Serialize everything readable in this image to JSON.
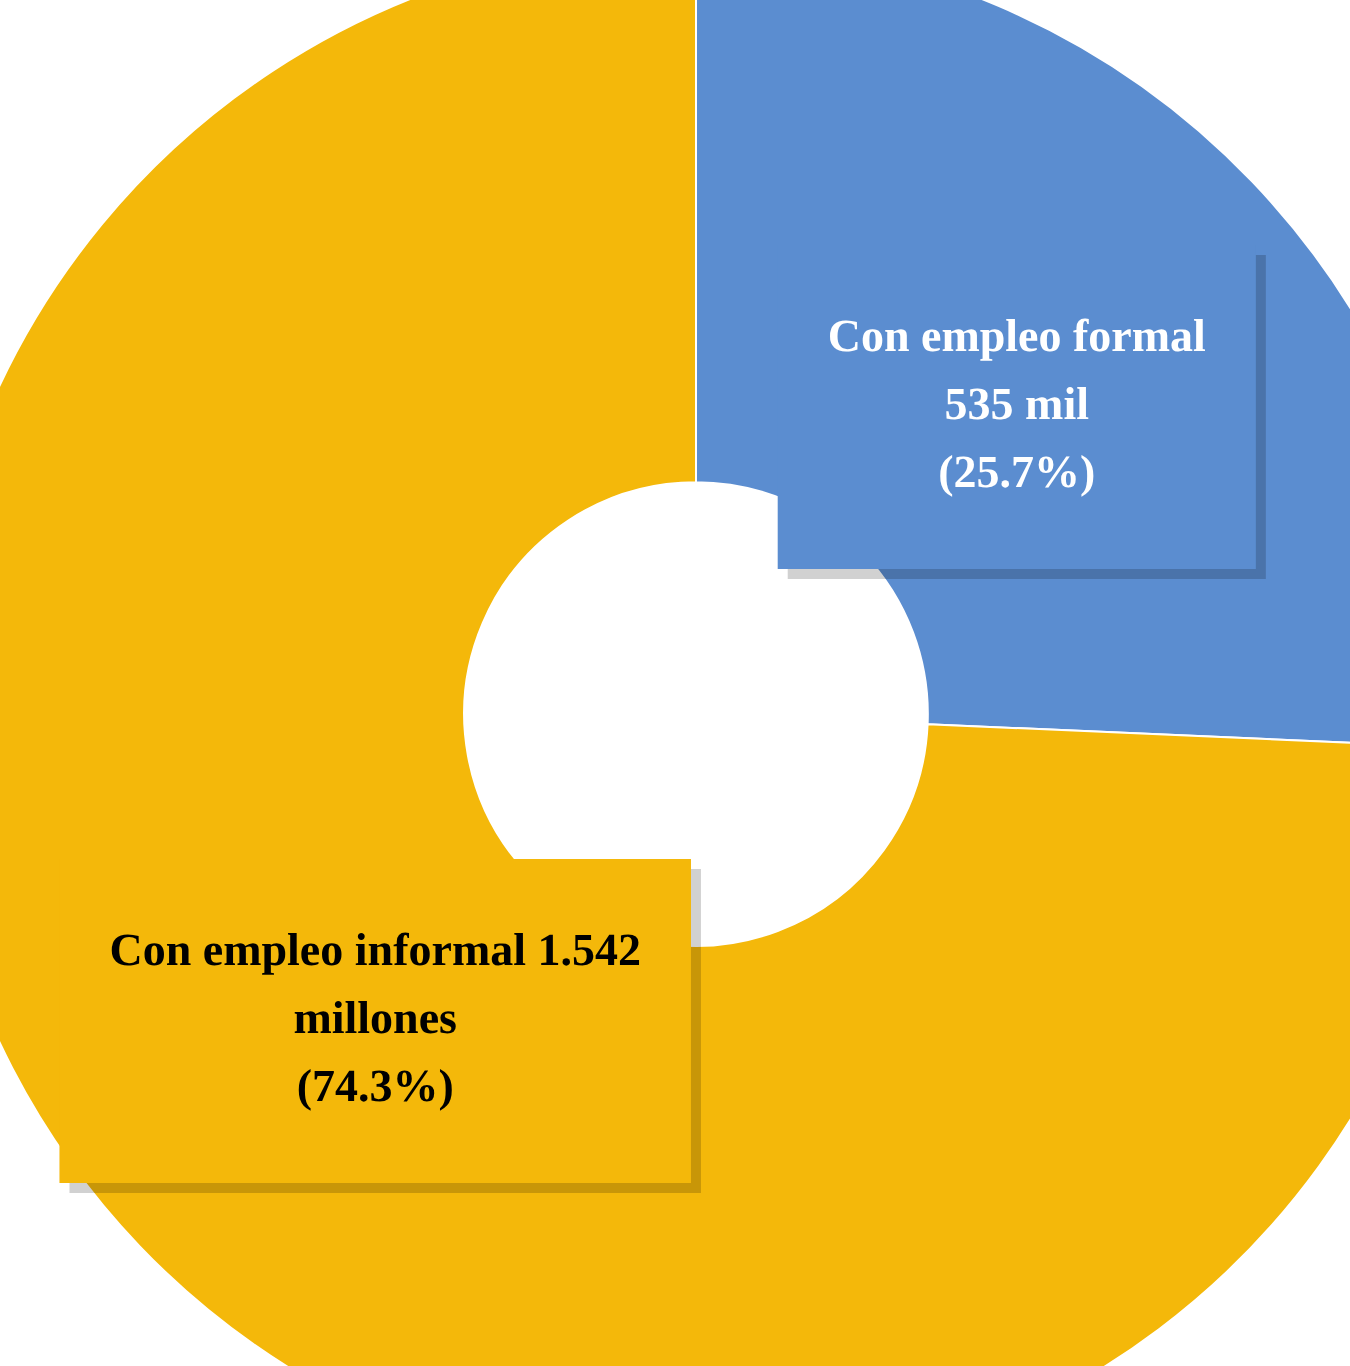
{
  "chart_data": {
    "type": "donut",
    "categories": [
      "Con empleo formal 535 mil",
      "Con empleo informal 1.542 millones"
    ],
    "values": [
      25.7,
      74.3
    ],
    "value_labels": [
      "(25.7%)",
      "(74.3%)"
    ],
    "colors": [
      "#5b8dd0",
      "#f4b80a"
    ],
    "legend": false
  }
}
